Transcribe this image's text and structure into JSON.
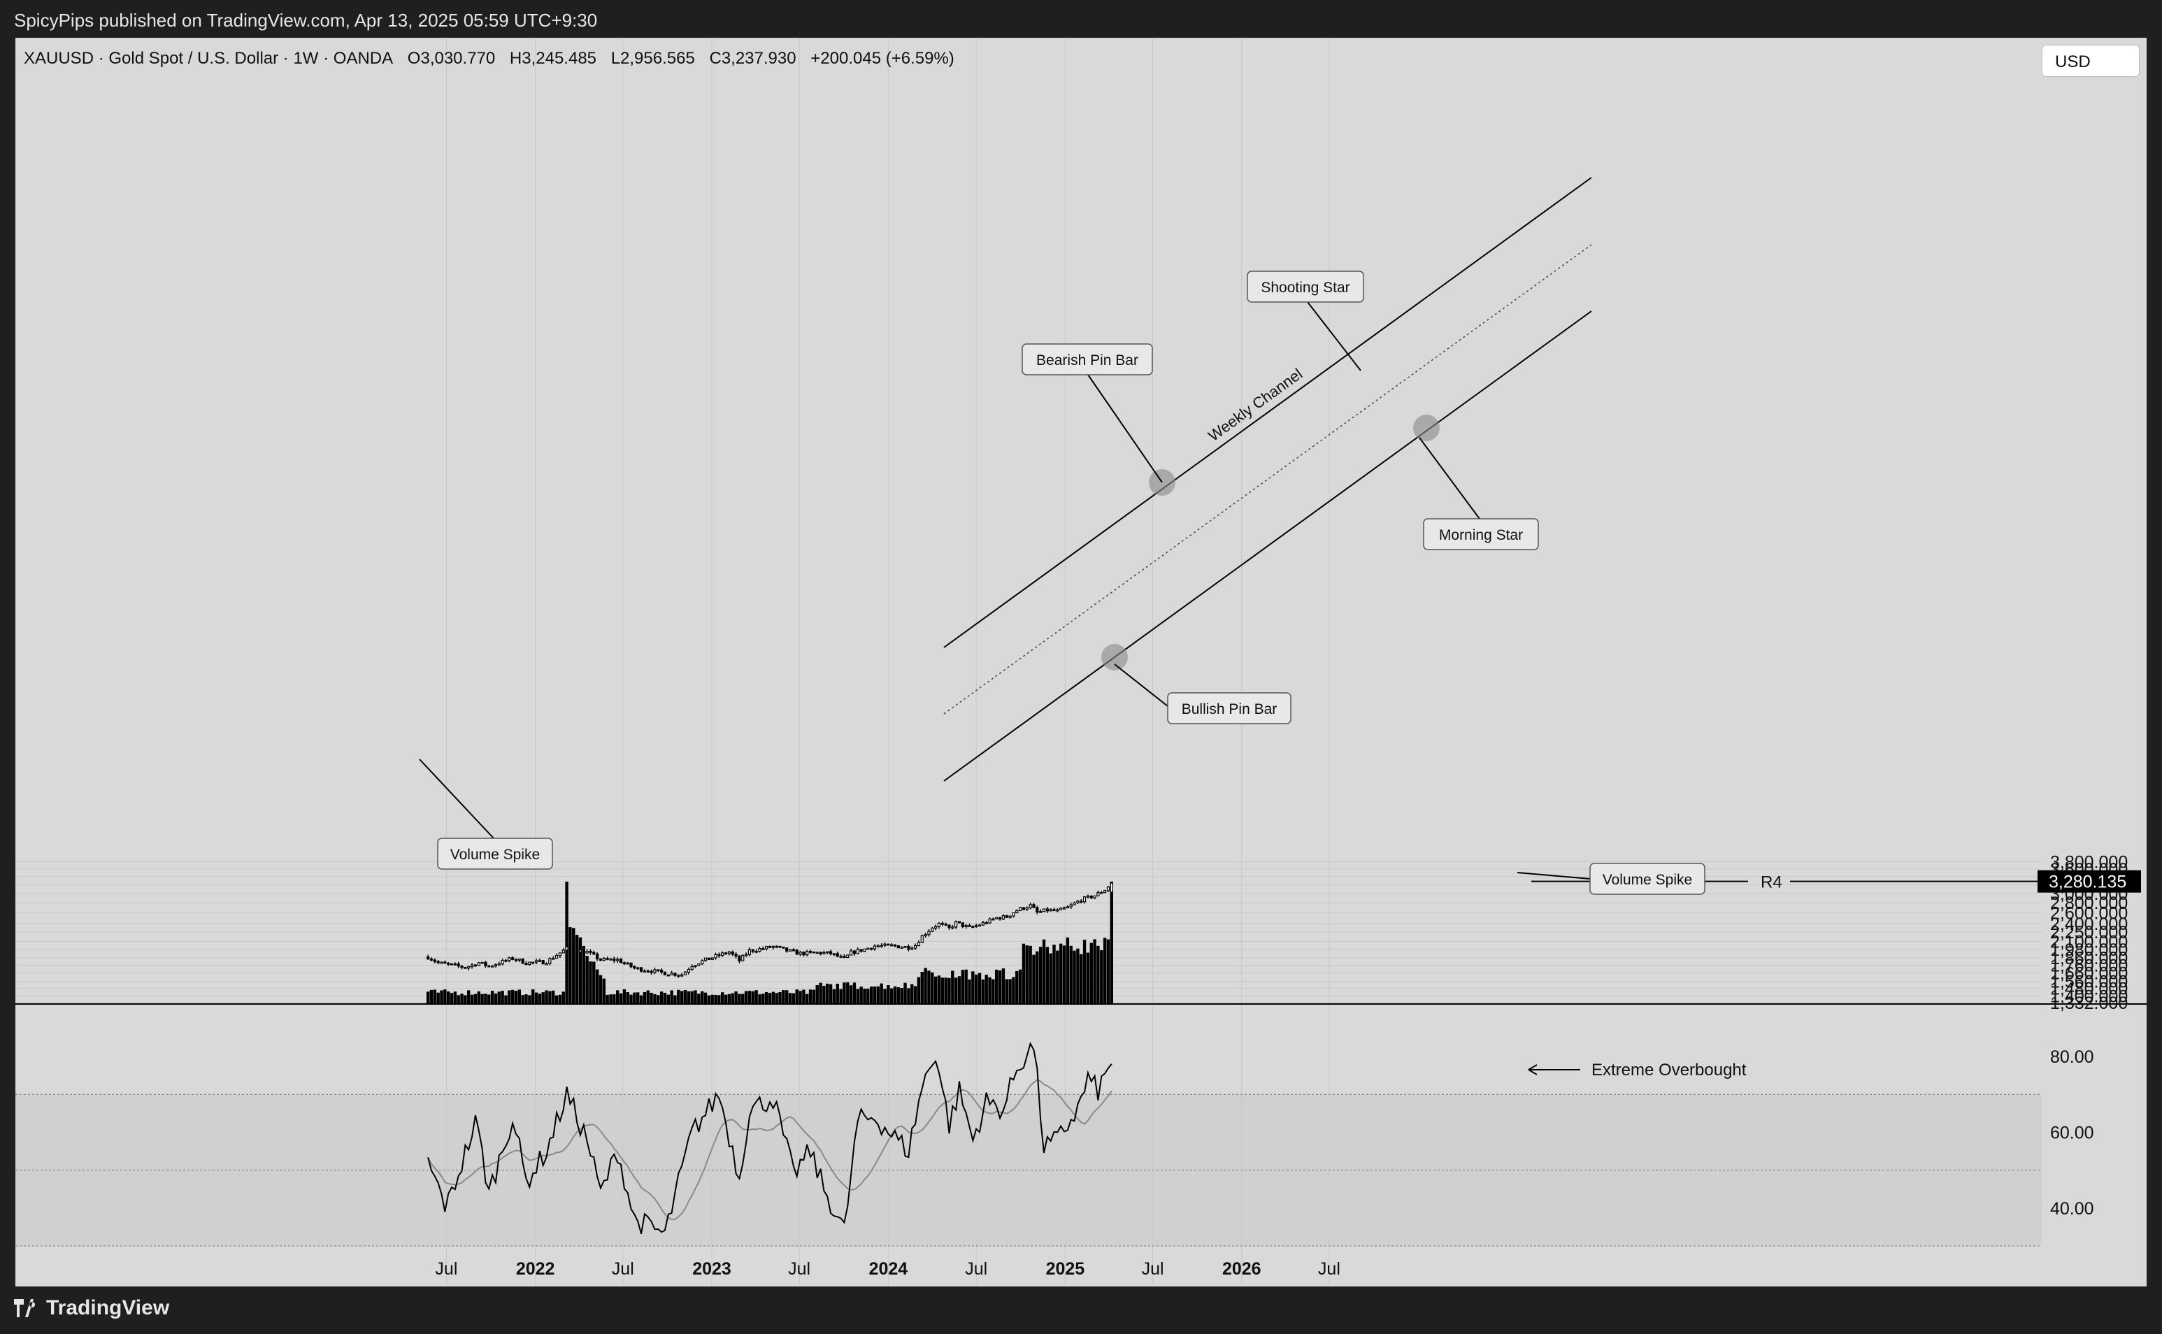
{
  "header": {
    "published_by": "SpicyPips published on TradingView.com, Apr 13, 2025 05:59 UTC+9:30"
  },
  "footer": {
    "brand": "TradingView"
  },
  "legend": {
    "symbol": "XAUUSD · Gold Spot / U.S. Dollar · 1W · OANDA",
    "open": "O3,030.770",
    "high": "H3,245.485",
    "low": "L2,956.565",
    "close": "C3,237.930",
    "change": "+200.045 (+6.59%)"
  },
  "currency_button": {
    "label": "USD"
  },
  "chart_data": [
    {
      "type": "candlestick",
      "series": [
        {
          "name": "XAUUSD"
        }
      ],
      "y_scale": "log",
      "ylim": [
        1332,
        3900
      ],
      "y_ticks": [
        "3,800.000",
        "3,600.000",
        "3,400.000",
        "3,200.000",
        "3,000.000",
        "2,800.000",
        "2,600.000",
        "2,400.000",
        "2,250.000",
        "2,100.000",
        "1,980.000",
        "1,860.000",
        "1,760.000",
        "1,660.000",
        "1,560.000",
        "1,480.000",
        "1,400.000",
        "1,332.000"
      ],
      "x_ticks": [
        "Jul",
        "2022",
        "Jul",
        "2023",
        "Jul",
        "2024",
        "Jul",
        "2025",
        "Jul",
        "2026",
        "Jul"
      ],
      "last_price_label": "3,280.135",
      "level_label": "R4",
      "waypoints": [
        [
          "2021-05-24",
          1870
        ],
        [
          "2021-06-14",
          1790
        ],
        [
          "2021-08-09",
          1730
        ],
        [
          "2021-09-06",
          1790
        ],
        [
          "2021-09-27",
          1745
        ],
        [
          "2021-11-15",
          1850
        ],
        [
          "2021-12-13",
          1790
        ],
        [
          "2022-01-24",
          1805
        ],
        [
          "2022-03-07",
          1990
        ],
        [
          "2022-04-18",
          1940
        ],
        [
          "2022-05-16",
          1830
        ],
        [
          "2022-06-20",
          1830
        ],
        [
          "2022-07-25",
          1720
        ],
        [
          "2022-09-26",
          1660
        ],
        [
          "2022-11-01",
          1640
        ],
        [
          "2022-11-21",
          1760
        ],
        [
          "2023-01-09",
          1880
        ],
        [
          "2023-02-06",
          1940
        ],
        [
          "2023-02-27",
          1820
        ],
        [
          "2023-03-20",
          1960
        ],
        [
          "2023-04-17",
          1990
        ],
        [
          "2023-05-08",
          2020
        ],
        [
          "2023-06-05",
          1960
        ],
        [
          "2023-07-03",
          1920
        ],
        [
          "2023-08-07",
          1930
        ],
        [
          "2023-09-04",
          1920
        ],
        [
          "2023-10-02",
          1840
        ],
        [
          "2023-10-16",
          1930
        ],
        [
          "2023-11-13",
          1980
        ],
        [
          "2023-12-04",
          2030
        ],
        [
          "2024-01-15",
          2030
        ],
        [
          "2024-02-12",
          2010
        ],
        [
          "2024-02-26",
          2040
        ],
        [
          "2024-03-11",
          2180
        ],
        [
          "2024-04-01",
          2330
        ],
        [
          "2024-04-15",
          2390
        ],
        [
          "2024-05-06",
          2310
        ],
        [
          "2024-05-20",
          2410
        ],
        [
          "2024-06-17",
          2320
        ],
        [
          "2024-07-15",
          2400
        ],
        [
          "2024-08-12",
          2500
        ],
        [
          "2024-09-02",
          2520
        ],
        [
          "2024-09-23",
          2650
        ],
        [
          "2024-10-21",
          2740
        ],
        [
          "2024-11-04",
          2600
        ],
        [
          "2024-11-25",
          2650
        ],
        [
          "2024-12-16",
          2630
        ],
        [
          "2025-01-06",
          2700
        ],
        [
          "2025-02-03",
          2860
        ],
        [
          "2025-03-03",
          2950
        ],
        [
          "2025-03-24",
          3080
        ],
        [
          "2025-04-07",
          3238
        ]
      ]
    },
    {
      "type": "bar",
      "series": [
        {
          "name": "Volume"
        }
      ],
      "spikes": [
        [
          "2022-03-07",
          1.0
        ],
        [
          "2025-04-07",
          1.0
        ]
      ]
    },
    {
      "type": "line",
      "series": [
        {
          "name": "RSI"
        },
        {
          "name": "RSI MA"
        }
      ],
      "ylim": [
        30,
        85
      ],
      "y_ticks": [
        "80.00",
        "60.00",
        "40.00"
      ],
      "overbought": 70,
      "mid": 50,
      "oversold": 30,
      "last_value": 78
    }
  ],
  "annotations": {
    "weekly_channel": "Weekly Channel",
    "bearish_pin_bar": "Bearish Pin Bar",
    "shooting_star": "Shooting Star",
    "morning_star": "Morning Star",
    "bullish_pin_bar": "Bullish Pin Bar",
    "volume_spike_1": "Volume Spike",
    "volume_spike_2": "Volume Spike",
    "extreme_overbought": "Extreme Overbought"
  }
}
